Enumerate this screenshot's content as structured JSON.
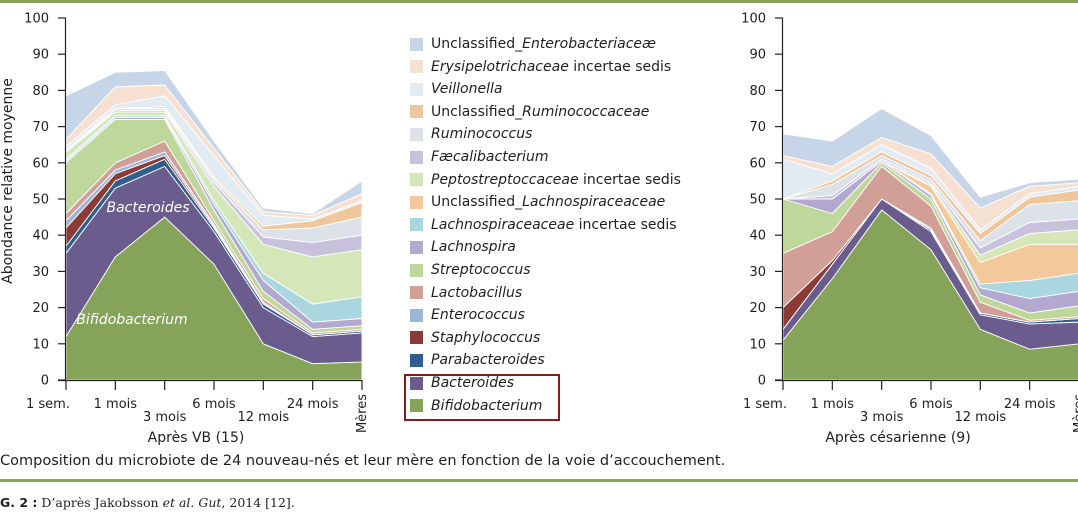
{
  "caption": "Composition du microbiote de 24 nouveau-nés et leur mère en fonction de la voie d’accouchement.",
  "fignote": {
    "label": "G. 2 :",
    "pre": " D’après Jakobsson ",
    "etal": "et al. Gut",
    "post": ", 2014 [12]."
  },
  "legend": [
    {
      "name": "Unclassified_Enterobacteriaceæ",
      "parts": [
        {
          "t": "Unclassified_",
          "i": false
        },
        {
          "t": "Enterobacteriaceæ",
          "i": true
        }
      ],
      "color": "#c6d5e8"
    },
    {
      "name": "Erysipelotrichaceae incertae sedis",
      "parts": [
        {
          "t": "Erysipelotrichaceae",
          "i": true
        },
        {
          "t": " incertae sedis",
          "i": false
        }
      ],
      "color": "#f6e0d2"
    },
    {
      "name": "Veillonella",
      "parts": [
        {
          "t": "Veillonella",
          "i": true
        }
      ],
      "color": "#e2ebf1"
    },
    {
      "name": "Unclassified_Ruminococcaceae",
      "parts": [
        {
          "t": "Unclassified_",
          "i": false
        },
        {
          "t": "Ruminococcaceae",
          "i": true
        }
      ],
      "color": "#f0c79d"
    },
    {
      "name": "Ruminococcus",
      "parts": [
        {
          "t": "Ruminococcus",
          "i": true
        }
      ],
      "color": "#dde1e8"
    },
    {
      "name": "Fæcalibacterium",
      "parts": [
        {
          "t": "Fæcalibacterium",
          "i": true
        }
      ],
      "color": "#c8c1dc"
    },
    {
      "name": "Peptostreptoccaceae incertae sedis",
      "parts": [
        {
          "t": "Peptostreptoccaceae",
          "i": true
        },
        {
          "t": " incertae sedis",
          "i": false
        }
      ],
      "color": "#d5e6b9"
    },
    {
      "name": "Unclassified_Lachnospiraceaceae",
      "parts": [
        {
          "t": "Unclassified_",
          "i": false
        },
        {
          "t": "Lachnospiraceaceae",
          "i": true
        }
      ],
      "color": "#f3c99c"
    },
    {
      "name": "Lachnospiraceaceae incertae sedis",
      "parts": [
        {
          "t": "Lachnospiraceaceae",
          "i": true
        },
        {
          "t": " incertae sedis",
          "i": false
        }
      ],
      "color": "#a9d6df"
    },
    {
      "name": "Lachnospira",
      "parts": [
        {
          "t": "Lachnospira",
          "i": true
        }
      ],
      "color": "#b3a8cf"
    },
    {
      "name": "Streptococcus",
      "parts": [
        {
          "t": "Streptococcus",
          "i": true
        }
      ],
      "color": "#bed79a"
    },
    {
      "name": "Lactobacillus",
      "parts": [
        {
          "t": "Lactobacillus",
          "i": true
        }
      ],
      "color": "#d19f95"
    },
    {
      "name": "Enterococcus",
      "parts": [
        {
          "t": "Enterococcus",
          "i": true
        }
      ],
      "color": "#9db5d6"
    },
    {
      "name": "Staphylococcus",
      "parts": [
        {
          "t": "Staphylococcus",
          "i": true
        }
      ],
      "color": "#8b3a35"
    },
    {
      "name": "Parabacteroides",
      "parts": [
        {
          "t": "Parabacteroides",
          "i": true
        }
      ],
      "color": "#2f5e8e"
    },
    {
      "name": "Bacteroides",
      "parts": [
        {
          "t": "Bacteroides",
          "i": true
        }
      ],
      "color": "#6a5d8e"
    },
    {
      "name": "Bifidobacterium",
      "parts": [
        {
          "t": "Bifidobacterium",
          "i": true
        }
      ],
      "color": "#86a35a"
    }
  ],
  "chart_data": [
    {
      "type": "area",
      "xlabel": "Après VB (15)",
      "ylabel": "Abondance relative moyenne",
      "ylim": [
        0,
        100
      ],
      "yticks": [
        "0",
        "10",
        "20",
        "30",
        "40",
        "50",
        "60",
        "70",
        "80",
        "90",
        "100"
      ],
      "categories": [
        "1 sem.",
        "1 mois",
        "3 mois",
        "6 mois",
        "12 mois",
        "24 mois",
        "Mères"
      ],
      "annotations": [
        "Bacteroides",
        "Bifidobacterium"
      ],
      "series": [
        {
          "name": "Bifidobacterium",
          "values": [
            12,
            34,
            45,
            32,
            10,
            4.5,
            5
          ]
        },
        {
          "name": "Bacteroides",
          "values": [
            23,
            19,
            14,
            9,
            10,
            7.5,
            8
          ]
        },
        {
          "name": "Parabacteroides",
          "values": [
            2,
            2,
            2,
            1,
            1,
            0.5,
            0.5
          ]
        },
        {
          "name": "Staphylococcus",
          "values": [
            5,
            2,
            1,
            0.5,
            0,
            0,
            0
          ]
        },
        {
          "name": "Enterococcus",
          "values": [
            2,
            1,
            1,
            0.5,
            0.5,
            0,
            0
          ]
        },
        {
          "name": "Lactobacillus",
          "values": [
            2,
            2,
            3,
            1,
            1,
            0.5,
            0.5
          ]
        },
        {
          "name": "Streptococcus",
          "values": [
            14,
            12,
            6,
            3,
            2,
            1,
            1
          ]
        },
        {
          "name": "Lachnospira",
          "values": [
            0.5,
            0.5,
            0.5,
            1.5,
            3,
            2,
            2
          ]
        },
        {
          "name": "Lachnospiraceaceae incertae sedis",
          "values": [
            0.5,
            0.5,
            0.5,
            1,
            2,
            5,
            6
          ]
        },
        {
          "name": "Unclassified_Lachnospiraceaceae",
          "values": [
            0,
            0,
            0,
            0,
            0,
            0,
            0
          ]
        },
        {
          "name": "Peptostreptoccaceae incertae sedis",
          "values": [
            2,
            1,
            1,
            4,
            8,
            13,
            13
          ]
        },
        {
          "name": "Fæcalibacterium",
          "values": [
            0,
            0.5,
            0.5,
            1,
            2,
            4,
            4
          ]
        },
        {
          "name": "Ruminococcus",
          "values": [
            0.5,
            0.5,
            0.5,
            1,
            2,
            4,
            5
          ]
        },
        {
          "name": "Unclassified_Ruminococcaceae",
          "values": [
            0,
            0,
            0.5,
            0.5,
            1,
            2,
            4
          ]
        },
        {
          "name": "Veillonella",
          "values": [
            1,
            1,
            3,
            6,
            3,
            0.5,
            0.5
          ]
        },
        {
          "name": "Erysipelotrichaceae incertae sedis",
          "values": [
            2,
            5,
            3,
            2,
            1,
            1,
            2
          ]
        },
        {
          "name": "Unclassified_Enterobacteriaceæ",
          "values": [
            12,
            4,
            4,
            2,
            1,
            0.5,
            3.5
          ]
        }
      ]
    },
    {
      "type": "area",
      "xlabel": "Après césarienne (9)",
      "ylabel": "",
      "ylim": [
        0,
        100
      ],
      "yticks": [
        "0",
        "10",
        "20",
        "30",
        "40",
        "50",
        "60",
        "70",
        "80",
        "90",
        "100"
      ],
      "categories": [
        "1 sem.",
        "1 mois",
        "3 mois",
        "6 mois",
        "12 mois",
        "24 mois",
        "Mères"
      ],
      "annotations": [],
      "series": [
        {
          "name": "Bifidobacterium",
          "values": [
            11,
            28,
            47,
            36,
            14,
            8.5,
            10
          ]
        },
        {
          "name": "Bacteroides",
          "values": [
            3,
            4,
            3,
            5,
            4,
            7,
            6
          ]
        },
        {
          "name": "Parabacteroides",
          "values": [
            0,
            0,
            0,
            0.5,
            0.5,
            0.5,
            1
          ]
        },
        {
          "name": "Staphylococcus",
          "values": [
            6,
            1,
            0,
            0,
            0,
            0,
            0
          ]
        },
        {
          "name": "Enterococcus",
          "values": [
            0,
            0,
            0,
            0.5,
            0,
            0,
            0
          ]
        },
        {
          "name": "Lactobacillus",
          "values": [
            15,
            8,
            9,
            6,
            3,
            0.5,
            0.5
          ]
        },
        {
          "name": "Streptococcus",
          "values": [
            15,
            5,
            1,
            2,
            2,
            2,
            3
          ]
        },
        {
          "name": "Lachnospira",
          "values": [
            0,
            4,
            0.5,
            1,
            2,
            4,
            4
          ]
        },
        {
          "name": "Lachnospiraceaceae incertae sedis",
          "values": [
            0,
            0,
            0,
            0.5,
            1,
            5,
            5
          ]
        },
        {
          "name": "Unclassified_Lachnospiraceaceae",
          "values": [
            0,
            0,
            0,
            2,
            6,
            10,
            8
          ]
        },
        {
          "name": "Peptostreptoccaceae incertae sedis",
          "values": [
            0,
            0,
            0,
            0.5,
            2,
            3,
            4
          ]
        },
        {
          "name": "Fæcalibacterium",
          "values": [
            0,
            1,
            0.5,
            0.5,
            2,
            3,
            3
          ]
        },
        {
          "name": "Ruminococcus",
          "values": [
            0,
            3,
            1,
            1,
            2,
            5,
            5
          ]
        },
        {
          "name": "Unclassified_Ruminococcaceae",
          "values": [
            0,
            1,
            1,
            1,
            2,
            2,
            3
          ]
        },
        {
          "name": "Veillonella",
          "values": [
            11,
            2,
            2,
            2,
            1,
            1,
            1
          ]
        },
        {
          "name": "Erysipelotrichaceae incertae sedis",
          "values": [
            1,
            2,
            2,
            4,
            6,
            2,
            1
          ]
        },
        {
          "name": "Unclassified_Enterobacteriaceæ",
          "values": [
            6,
            7,
            8,
            5,
            3,
            1,
            1
          ]
        }
      ]
    }
  ]
}
